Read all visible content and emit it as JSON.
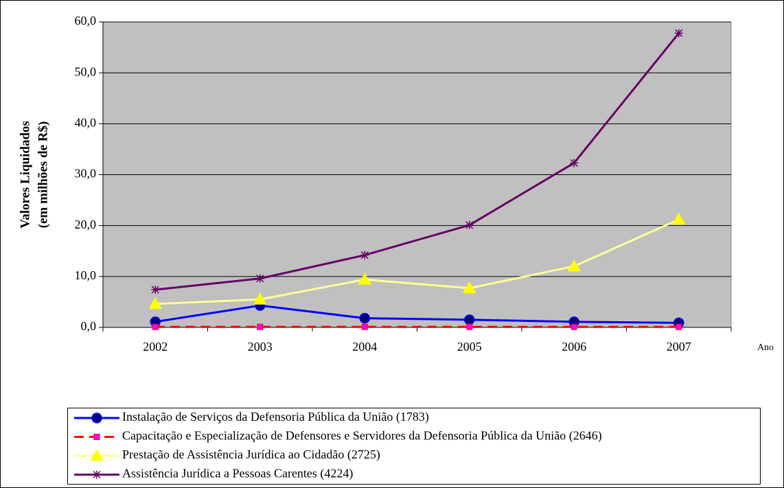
{
  "chart_data": {
    "type": "line",
    "y_label_lines": [
      "Valores Liquidados",
      "(em milhões de R$)"
    ],
    "x_label": "Ano",
    "categories": [
      "2002",
      "2003",
      "2004",
      "2005",
      "2006",
      "2007"
    ],
    "ylim": [
      0,
      60
    ],
    "yticks": [
      {
        "value": 0,
        "label": "0,0"
      },
      {
        "value": 10,
        "label": "10,0"
      },
      {
        "value": 20,
        "label": "20,0"
      },
      {
        "value": 30,
        "label": "30,0"
      },
      {
        "value": 40,
        "label": "40,0"
      },
      {
        "value": 50,
        "label": "50,0"
      },
      {
        "value": 60,
        "label": "60,0"
      }
    ],
    "grid": true,
    "legend": "bottom",
    "series": [
      {
        "name": "Instalação de Serviços da Defensoria Pública da União (1783)",
        "color": "#0000ff",
        "marker": "circle",
        "dashed": false,
        "values": [
          1.1,
          4.3,
          1.8,
          1.5,
          1.1,
          0.9
        ]
      },
      {
        "name": "Capacitação e Especialização de Defensores e Servidores da Defensoria Pública da União (2646)",
        "color": "#ff0000",
        "marker": "square",
        "dashed": true,
        "values": [
          0.1,
          0.1,
          0.1,
          0.1,
          0.1,
          0.1
        ]
      },
      {
        "name": "Prestação de Assistência Jurídica ao Cidadão (2725)",
        "color": "#ffff99",
        "marker": "triangle",
        "dashed": false,
        "values": [
          4.6,
          5.5,
          9.4,
          7.7,
          12.0,
          21.2
        ]
      },
      {
        "name": "Assistência Jurídica a Pessoas Carentes (4224)",
        "color": "#660066",
        "marker": "star",
        "dashed": false,
        "values": [
          7.4,
          9.6,
          14.2,
          20.1,
          32.3,
          57.8
        ]
      }
    ]
  }
}
